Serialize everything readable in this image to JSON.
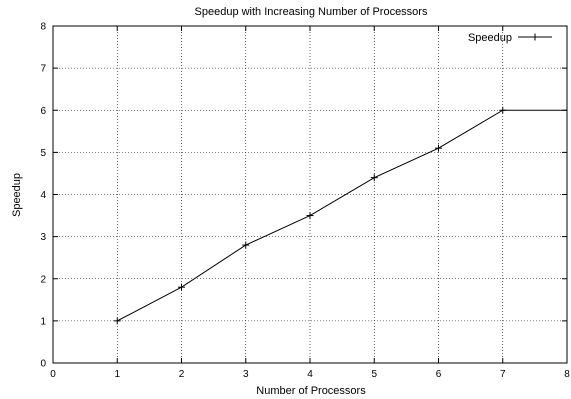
{
  "chart_data": {
    "type": "line",
    "title": "Speedup with Increasing Number of Processors",
    "xlabel": "Number of Processors",
    "ylabel": "Speedup",
    "xlim": [
      0,
      8
    ],
    "ylim": [
      0,
      8
    ],
    "xticks": [
      0,
      1,
      2,
      3,
      4,
      5,
      6,
      7,
      8
    ],
    "yticks": [
      0,
      1,
      2,
      3,
      4,
      5,
      6,
      7,
      8
    ],
    "grid": true,
    "legend_position": "top-right",
    "series": [
      {
        "name": "Speedup",
        "color": "#000000",
        "marker": "plus",
        "x": [
          1,
          2,
          3,
          4,
          5,
          6,
          7,
          8
        ],
        "y": [
          1,
          1.8,
          2.8,
          3.5,
          4.4,
          5.1,
          6,
          6
        ]
      }
    ]
  }
}
